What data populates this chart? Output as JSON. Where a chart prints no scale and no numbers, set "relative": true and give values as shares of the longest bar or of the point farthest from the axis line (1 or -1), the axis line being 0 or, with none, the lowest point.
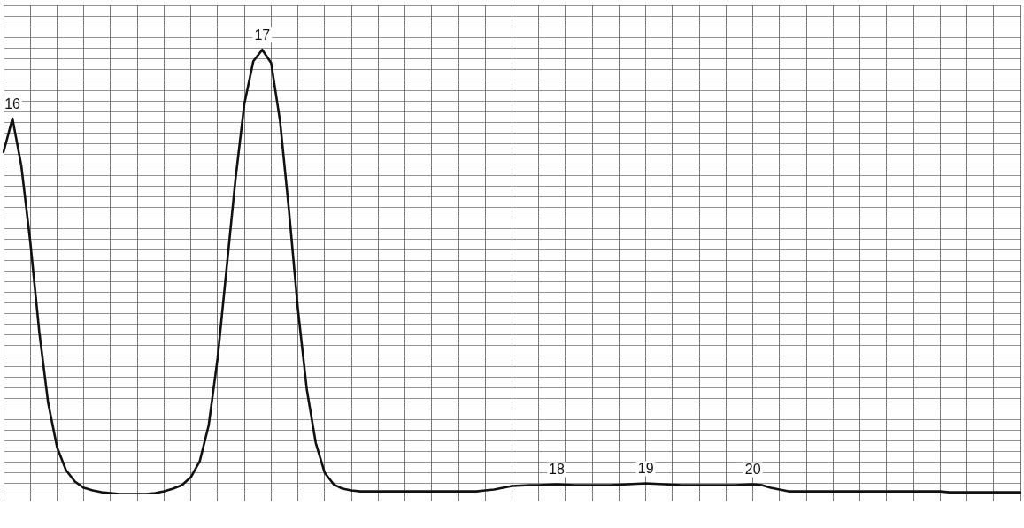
{
  "chart_data": {
    "type": "line",
    "relative": true,
    "grid": true,
    "marker": "none",
    "line_style": "solid",
    "categories": [
      null,
      null,
      null,
      null,
      null,
      null,
      null,
      null,
      null,
      null,
      null,
      null,
      null,
      null,
      null,
      null,
      null,
      null,
      null,
      null,
      null,
      null,
      null,
      null,
      null,
      null,
      null,
      null,
      null,
      null,
      null,
      null,
      null,
      null,
      null,
      null,
      null,
      null,
      null,
      null,
      null,
      null,
      null,
      null,
      null,
      null,
      null,
      null,
      null,
      null,
      null,
      null,
      null,
      null,
      null,
      null,
      null,
      null,
      null,
      null,
      null,
      null,
      null,
      null,
      null,
      null,
      null,
      null,
      null,
      null,
      null,
      null,
      null,
      null,
      null,
      null,
      null,
      null,
      null,
      null,
      null,
      null,
      null,
      null,
      null,
      null,
      null,
      null,
      null,
      null,
      null,
      null,
      null,
      null,
      null,
      null,
      null,
      null,
      null,
      null,
      null,
      null,
      null,
      null,
      null,
      null,
      null,
      null,
      null,
      null,
      null,
      null,
      null,
      null,
      null
    ],
    "series": [
      {
        "color": "#111111",
        "values": [
          0.77,
          0.845,
          0.738,
          0.567,
          0.366,
          0.205,
          0.105,
          0.054,
          0.028,
          0.014,
          0.008,
          0.004,
          0.002,
          0,
          0,
          0,
          0,
          0.002,
          0.006,
          0.012,
          0.02,
          0.038,
          0.074,
          0.155,
          0.306,
          0.507,
          0.708,
          0.879,
          0.974,
          1,
          0.97,
          0.839,
          0.638,
          0.416,
          0.235,
          0.115,
          0.048,
          0.022,
          0.012,
          0.008,
          0.006,
          0.006,
          0.006,
          0.006,
          0.006,
          0.006,
          0.006,
          0.006,
          0.006,
          0.006,
          0.006,
          0.006,
          0.006,
          0.006,
          0.008,
          0.01,
          0.014,
          0.018,
          0.019,
          0.02,
          0.02,
          0.021,
          0.022,
          0.021,
          0.02,
          0.02,
          0.02,
          0.02,
          0.02,
          0.021,
          0.022,
          0.023,
          0.024,
          0.023,
          0.022,
          0.021,
          0.02,
          0.02,
          0.02,
          0.02,
          0.02,
          0.02,
          0.02,
          0.021,
          0.022,
          0.02,
          0.014,
          0.01,
          0.006,
          0.006,
          0.006,
          0.006,
          0.006,
          0.006,
          0.006,
          0.006,
          0.006,
          0.006,
          0.006,
          0.006,
          0.006,
          0.006,
          0.006,
          0.006,
          0.006,
          0.006,
          0.004,
          0.004,
          0.004,
          0.004,
          0.004,
          0.004,
          0.004,
          0.004,
          0.004
        ]
      }
    ],
    "annotations": [
      "16",
      "17",
      "18",
      "19",
      "20"
    ]
  }
}
